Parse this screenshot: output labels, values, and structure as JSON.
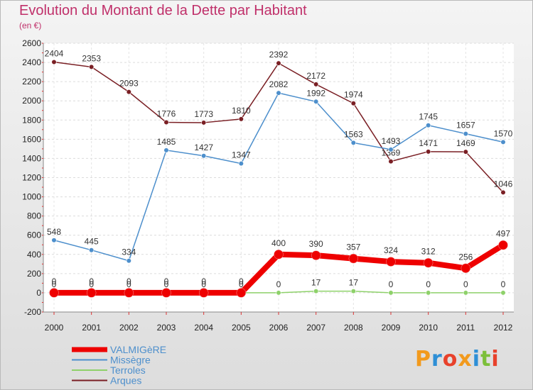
{
  "header": {
    "title": "Evolution du Montant de la Dette par Habitant",
    "subtitle": "(en €)"
  },
  "logo": {
    "text": "Proxiti",
    "colors": [
      "#f29a1d",
      "#2e8fd6",
      "#e8412b",
      "#f29a1d",
      "#2e8fd6",
      "#7cbf3a",
      "#e8412b"
    ]
  },
  "chart_data": {
    "type": "line",
    "title": "Evolution du Montant de la Dette par Habitant",
    "subtitle": "(en €)",
    "xlabel": "",
    "ylabel": "",
    "ylim": [
      -200,
      2600
    ],
    "yticks": [
      -200,
      0,
      200,
      400,
      600,
      800,
      1000,
      1200,
      1400,
      1600,
      1800,
      2000,
      2200,
      2400,
      2600
    ],
    "categories": [
      "2000",
      "2001",
      "2002",
      "2003",
      "2004",
      "2005",
      "2006",
      "2007",
      "2008",
      "2009",
      "2010",
      "2011",
      "2012"
    ],
    "legend_position": "bottom-left",
    "grid": true,
    "series": [
      {
        "name": "Arques",
        "color": "#7a1f24",
        "values": [
          2404,
          2353,
          2093,
          1776,
          1773,
          1810,
          2392,
          2172,
          1974,
          1369,
          1471,
          1469,
          1046
        ],
        "labels": [
          "2404",
          "2353",
          "2093",
          "1776",
          "1773",
          "1810",
          "2392",
          "2172",
          "1974",
          "1369",
          "1471",
          "1469",
          "1046"
        ]
      },
      {
        "name": "Missègre",
        "color": "#4d8fcc",
        "values": [
          548,
          445,
          334,
          1485,
          1427,
          1347,
          2082,
          1992,
          1563,
          1493,
          1745,
          1657,
          1570
        ],
        "labels": [
          "548",
          "445",
          "334",
          "1485",
          "1427",
          "1347",
          "2082",
          "1992",
          "1563",
          "1493",
          "1745",
          "1657",
          "1570"
        ]
      },
      {
        "name": "Terroles",
        "color": "#8ed16a",
        "values": [
          0,
          0,
          0,
          0,
          0,
          0,
          0,
          17,
          17,
          0,
          0,
          0,
          0
        ],
        "labels": [
          "0",
          "0",
          "0",
          "0",
          "0",
          "0",
          "0",
          "17",
          "17",
          "0",
          "0",
          "0",
          "0"
        ]
      },
      {
        "name": "VALMIGèRE",
        "color": "#ee0000",
        "values": [
          0,
          0,
          0,
          0,
          0,
          0,
          400,
          390,
          357,
          324,
          312,
          256,
          497
        ],
        "labels": [
          "0",
          "0",
          "0",
          "0",
          "0",
          "0",
          "400",
          "390",
          "357",
          "324",
          "312",
          "256",
          "497"
        ]
      }
    ],
    "legend": [
      {
        "name": "VALMIGèRE",
        "color": "#ee0000"
      },
      {
        "name": "Missègre",
        "color": "#4d8fcc"
      },
      {
        "name": "Terroles",
        "color": "#8ed16a"
      },
      {
        "name": "Arques",
        "color": "#7a1f24"
      }
    ]
  }
}
